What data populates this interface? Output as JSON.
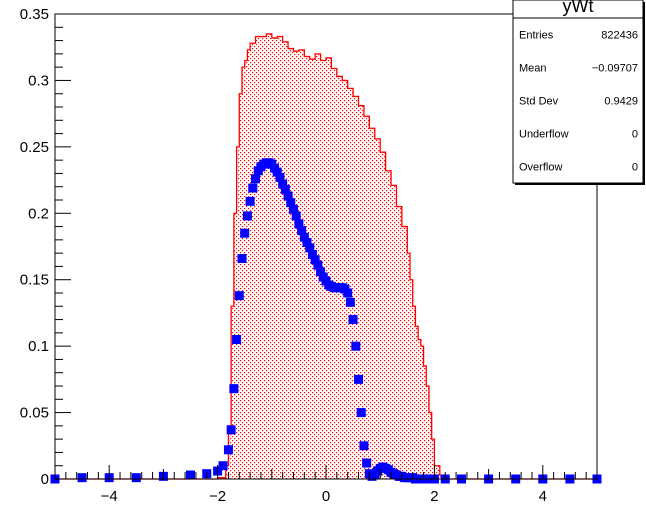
{
  "chart_data": {
    "type": "histogram",
    "title": "",
    "xlabel": "",
    "ylabel": "",
    "xlim": [
      -5,
      5
    ],
    "ylim": [
      0,
      0.35
    ],
    "x_ticks": [
      "−4",
      "−2",
      "0",
      "2",
      "4"
    ],
    "x_tick_values": [
      -4,
      -2,
      0,
      2,
      4
    ],
    "y_ticks": [
      "0",
      "0.05",
      "0.1",
      "0.15",
      "0.2",
      "0.25",
      "0.3",
      "0.35"
    ],
    "y_tick_values": [
      0,
      0.05,
      0.1,
      0.15,
      0.2,
      0.25,
      0.3,
      0.35
    ],
    "colors": {
      "hist": "#ff0000",
      "markers": "#0000ff",
      "frame": "#000000"
    },
    "series": [
      {
        "style": "filled-step (red dotted fill)",
        "x": [
          -5.0,
          -3.0,
          -2.2,
          -2.0,
          -1.85,
          -1.8,
          -1.75,
          -1.7,
          -1.65,
          -1.6,
          -1.55,
          -1.5,
          -1.45,
          -1.4,
          -1.3,
          -1.2,
          -1.1,
          -1.0,
          -0.9,
          -0.8,
          -0.7,
          -0.6,
          -0.5,
          -0.4,
          -0.3,
          -0.2,
          -0.1,
          0.0,
          0.1,
          0.2,
          0.3,
          0.4,
          0.5,
          0.6,
          0.7,
          0.8,
          0.9,
          1.0,
          1.1,
          1.2,
          1.3,
          1.4,
          1.5,
          1.55,
          1.6,
          1.65,
          1.7,
          1.75,
          1.8,
          1.85,
          1.9,
          1.95,
          2.0,
          2.1,
          2.2,
          3.0,
          5.0
        ],
        "y": [
          0.0,
          0.0,
          0.0,
          0.001,
          0.01,
          0.04,
          0.13,
          0.2,
          0.25,
          0.29,
          0.31,
          0.315,
          0.323,
          0.328,
          0.333,
          0.333,
          0.335,
          0.332,
          0.333,
          0.329,
          0.324,
          0.322,
          0.323,
          0.318,
          0.316,
          0.32,
          0.315,
          0.317,
          0.309,
          0.303,
          0.3,
          0.294,
          0.288,
          0.281,
          0.273,
          0.264,
          0.256,
          0.246,
          0.232,
          0.221,
          0.205,
          0.19,
          0.17,
          0.15,
          0.13,
          0.115,
          0.105,
          0.1,
          0.085,
          0.07,
          0.05,
          0.03,
          0.01,
          0.003,
          0.0,
          0.0,
          0.0
        ]
      },
      {
        "style": "square markers",
        "x": [
          -5.0,
          -4.5,
          -4.0,
          -3.5,
          -3.0,
          -2.5,
          -2.2,
          -2.0,
          -1.9,
          -1.8,
          -1.75,
          -1.7,
          -1.65,
          -1.6,
          -1.55,
          -1.5,
          -1.45,
          -1.4,
          -1.35,
          -1.3,
          -1.25,
          -1.2,
          -1.15,
          -1.1,
          -1.05,
          -1.0,
          -0.95,
          -0.9,
          -0.85,
          -0.8,
          -0.75,
          -0.7,
          -0.65,
          -0.6,
          -0.55,
          -0.5,
          -0.45,
          -0.4,
          -0.35,
          -0.3,
          -0.25,
          -0.2,
          -0.15,
          -0.1,
          -0.05,
          0.0,
          0.05,
          0.1,
          0.15,
          0.2,
          0.25,
          0.3,
          0.35,
          0.4,
          0.45,
          0.5,
          0.55,
          0.6,
          0.65,
          0.7,
          0.75,
          0.8,
          0.85,
          0.9,
          0.95,
          1.0,
          1.05,
          1.1,
          1.15,
          1.2,
          1.25,
          1.3,
          1.35,
          1.4,
          1.45,
          1.5,
          1.55,
          1.6,
          1.65,
          1.7,
          1.75,
          1.8,
          1.85,
          1.9,
          2.0,
          2.2,
          2.5,
          3.0,
          3.5,
          4.0,
          4.5,
          5.0
        ],
        "y": [
          0.0,
          0.001,
          0.001,
          0.001,
          0.002,
          0.003,
          0.004,
          0.006,
          0.01,
          0.022,
          0.037,
          0.068,
          0.105,
          0.138,
          0.166,
          0.185,
          0.198,
          0.209,
          0.219,
          0.226,
          0.232,
          0.235,
          0.237,
          0.238,
          0.238,
          0.237,
          0.234,
          0.231,
          0.227,
          0.222,
          0.218,
          0.213,
          0.208,
          0.203,
          0.198,
          0.192,
          0.187,
          0.182,
          0.178,
          0.174,
          0.169,
          0.165,
          0.161,
          0.156,
          0.152,
          0.149,
          0.146,
          0.145,
          0.144,
          0.144,
          0.144,
          0.144,
          0.143,
          0.14,
          0.133,
          0.12,
          0.1,
          0.075,
          0.05,
          0.025,
          0.012,
          0.004,
          0.002,
          0.003,
          0.006,
          0.008,
          0.009,
          0.008,
          0.007,
          0.005,
          0.004,
          0.003,
          0.002,
          0.002,
          0.001,
          0.001,
          0.001,
          0.001,
          0.0,
          0.0,
          0.0,
          0.0,
          0.0,
          0.0,
          0.0,
          0.0,
          0.0,
          0.0,
          0.0,
          0.0,
          0.0,
          0.0
        ]
      }
    ],
    "stats_box": {
      "title": "yWt",
      "rows": [
        {
          "label": "Entries",
          "value": "822436"
        },
        {
          "label": "Mean",
          "value": "−0.09707"
        },
        {
          "label": "Std Dev",
          "value": "0.9429"
        },
        {
          "label": "Underflow",
          "value": "0"
        },
        {
          "label": "Overflow",
          "value": "0"
        }
      ]
    }
  }
}
